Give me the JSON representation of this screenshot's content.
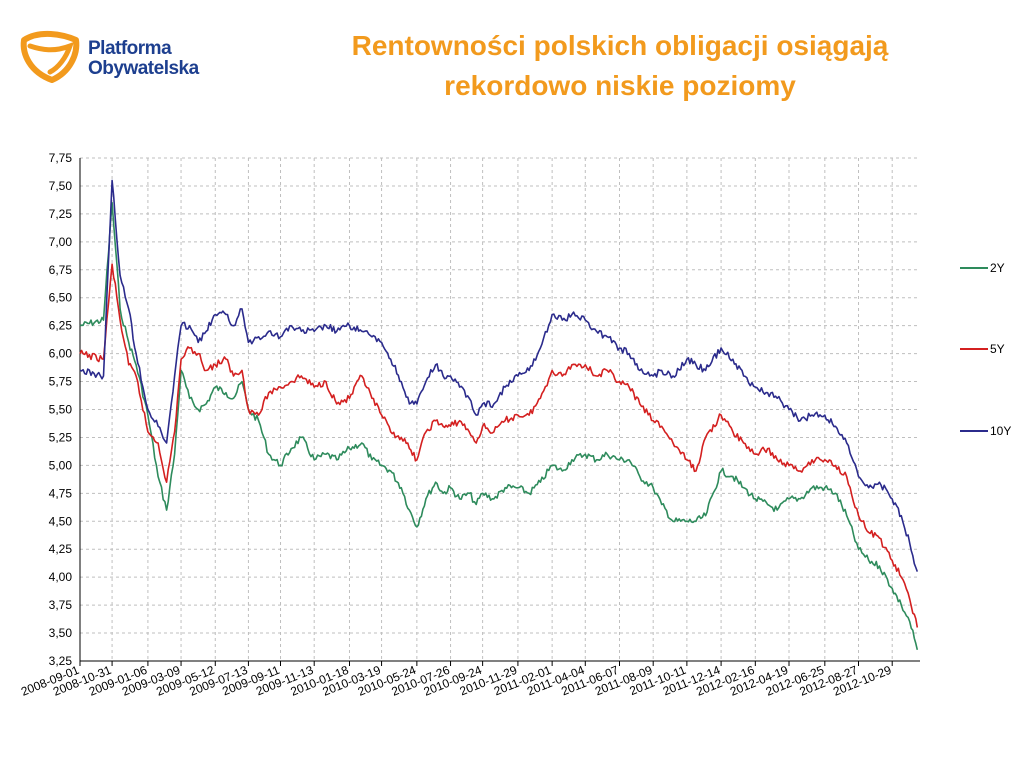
{
  "header": {
    "logo_line1": "Platforma",
    "logo_line2": "Obywatelska",
    "title_line1": "Rentowności polskich obligacji osiągają",
    "title_line2": "rekordowo niskie poziomy"
  },
  "colors": {
    "title": "#f29a1d",
    "logo_text": "#1d3f8f",
    "logo_mark": "#f29a1d",
    "grid": "#bfbfbf",
    "series_2Y": "#2e8b5c",
    "series_5Y": "#d42020",
    "series_10Y": "#2b2b8c"
  },
  "chart_data": {
    "type": "line",
    "title": "",
    "xlabel": "",
    "ylabel": "",
    "ylim": [
      3.25,
      7.75
    ],
    "yticks": [
      "7,75",
      "7,50",
      "7,25",
      "7,00",
      "6,75",
      "6,50",
      "6,25",
      "6,00",
      "5,75",
      "5,50",
      "5,25",
      "5,00",
      "4,75",
      "4,50",
      "4,25",
      "4,00",
      "3,75",
      "3,50",
      "3,25"
    ],
    "xticks": [
      "2008-09-01",
      "2008-10-31",
      "2009-01-06",
      "2009-03-09",
      "2009-05-12",
      "2009-07-13",
      "2009-09-11",
      "2009-11-13",
      "2010-01-18",
      "2010-03-19",
      "2010-05-24",
      "2010-07-26",
      "2010-09-24",
      "2010-11-29",
      "2011-02-01",
      "2011-04-04",
      "2011-06-07",
      "2011-08-09",
      "2011-10-11",
      "2011-12-14",
      "2012-02-16",
      "2012-04-19",
      "2012-06-25",
      "2012-08-27",
      "2012-10-29"
    ],
    "grid": true,
    "legend_position": "right",
    "series": [
      {
        "name": "2Y",
        "x": [
          "2008-09-01",
          "2008-10-15",
          "2008-10-31",
          "2008-11-15",
          "2008-12-01",
          "2008-12-15",
          "2009-01-06",
          "2009-01-25",
          "2009-02-10",
          "2009-02-25",
          "2009-03-09",
          "2009-03-25",
          "2009-04-10",
          "2009-04-25",
          "2009-05-12",
          "2009-06-01",
          "2009-06-15",
          "2009-07-01",
          "2009-07-13",
          "2009-08-01",
          "2009-08-20",
          "2009-09-11",
          "2009-10-01",
          "2009-10-20",
          "2009-11-13",
          "2009-12-05",
          "2009-12-25",
          "2010-01-18",
          "2010-02-10",
          "2010-03-01",
          "2010-03-19",
          "2010-04-05",
          "2010-04-25",
          "2010-05-10",
          "2010-05-24",
          "2010-06-10",
          "2010-06-28",
          "2010-07-12",
          "2010-07-26",
          "2010-08-12",
          "2010-08-30",
          "2010-09-12",
          "2010-09-24",
          "2010-10-15",
          "2010-11-05",
          "2010-11-29",
          "2010-12-20",
          "2011-01-10",
          "2011-02-01",
          "2011-02-20",
          "2011-03-10",
          "2011-04-04",
          "2011-04-25",
          "2011-05-15",
          "2011-06-07",
          "2011-06-25",
          "2011-07-15",
          "2011-08-09",
          "2011-08-25",
          "2011-09-15",
          "2011-10-11",
          "2011-10-28",
          "2011-11-15",
          "2011-12-14",
          "2012-01-05",
          "2012-01-25",
          "2012-02-16",
          "2012-03-10",
          "2012-03-28",
          "2012-04-19",
          "2012-05-10",
          "2012-06-01",
          "2012-06-25",
          "2012-07-15",
          "2012-08-05",
          "2012-08-27",
          "2012-09-15",
          "2012-10-05",
          "2012-10-29",
          "2012-11-15",
          "2012-12-01",
          "2012-12-15"
        ],
        "values": [
          6.25,
          6.3,
          7.35,
          6.4,
          6.1,
          5.9,
          5.45,
          4.9,
          4.6,
          5.1,
          5.85,
          5.6,
          5.5,
          5.55,
          5.7,
          5.65,
          5.6,
          5.75,
          5.5,
          5.4,
          5.1,
          5.0,
          5.15,
          5.25,
          5.05,
          5.1,
          5.05,
          5.15,
          5.2,
          5.05,
          5.0,
          4.95,
          4.8,
          4.6,
          4.45,
          4.7,
          4.85,
          4.75,
          4.8,
          4.7,
          4.75,
          4.65,
          4.75,
          4.7,
          4.8,
          4.8,
          4.75,
          4.85,
          5.0,
          4.95,
          5.05,
          5.1,
          5.05,
          5.1,
          5.05,
          5.05,
          4.9,
          4.8,
          4.65,
          4.5,
          4.5,
          4.5,
          4.55,
          4.95,
          4.9,
          4.8,
          4.7,
          4.65,
          4.6,
          4.7,
          4.7,
          4.8,
          4.8,
          4.75,
          4.55,
          4.25,
          4.15,
          4.1,
          3.9,
          3.75,
          3.6,
          3.35
        ]
      },
      {
        "name": "5Y",
        "x": [
          "2008-09-01",
          "2008-10-15",
          "2008-10-31",
          "2008-11-15",
          "2008-12-01",
          "2008-12-15",
          "2009-01-06",
          "2009-01-25",
          "2009-02-10",
          "2009-02-25",
          "2009-03-09",
          "2009-03-25",
          "2009-04-10",
          "2009-04-25",
          "2009-05-12",
          "2009-06-01",
          "2009-06-15",
          "2009-07-01",
          "2009-07-13",
          "2009-08-01",
          "2009-08-20",
          "2009-09-11",
          "2009-10-01",
          "2009-10-20",
          "2009-11-13",
          "2009-12-05",
          "2009-12-25",
          "2010-01-18",
          "2010-02-10",
          "2010-03-01",
          "2010-03-19",
          "2010-04-05",
          "2010-04-25",
          "2010-05-10",
          "2010-05-24",
          "2010-06-10",
          "2010-06-28",
          "2010-07-12",
          "2010-07-26",
          "2010-08-12",
          "2010-08-30",
          "2010-09-12",
          "2010-09-24",
          "2010-10-15",
          "2010-11-05",
          "2010-11-29",
          "2010-12-20",
          "2011-01-10",
          "2011-02-01",
          "2011-02-20",
          "2011-03-10",
          "2011-04-04",
          "2011-04-25",
          "2011-05-15",
          "2011-06-07",
          "2011-06-25",
          "2011-07-15",
          "2011-08-09",
          "2011-08-25",
          "2011-09-15",
          "2011-10-11",
          "2011-10-28",
          "2011-11-15",
          "2011-12-14",
          "2012-01-05",
          "2012-01-25",
          "2012-02-16",
          "2012-03-10",
          "2012-03-28",
          "2012-04-19",
          "2012-05-10",
          "2012-06-01",
          "2012-06-25",
          "2012-07-15",
          "2012-08-05",
          "2012-08-27",
          "2012-09-15",
          "2012-10-05",
          "2012-10-29",
          "2012-11-15",
          "2012-12-01",
          "2012-12-15"
        ],
        "values": [
          6.0,
          5.95,
          6.8,
          6.3,
          5.9,
          5.8,
          5.3,
          5.2,
          4.85,
          5.3,
          5.95,
          6.05,
          6.0,
          5.85,
          5.9,
          5.95,
          5.8,
          5.85,
          5.5,
          5.45,
          5.65,
          5.7,
          5.75,
          5.8,
          5.7,
          5.75,
          5.55,
          5.6,
          5.8,
          5.6,
          5.45,
          5.3,
          5.25,
          5.15,
          5.05,
          5.3,
          5.4,
          5.35,
          5.35,
          5.4,
          5.3,
          5.2,
          5.35,
          5.3,
          5.4,
          5.45,
          5.45,
          5.6,
          5.85,
          5.8,
          5.9,
          5.9,
          5.8,
          5.85,
          5.75,
          5.7,
          5.55,
          5.4,
          5.35,
          5.2,
          5.05,
          4.95,
          5.25,
          5.45,
          5.3,
          5.2,
          5.1,
          5.15,
          5.05,
          5.0,
          4.95,
          5.05,
          5.05,
          5.0,
          4.9,
          4.55,
          4.4,
          4.35,
          4.15,
          4.0,
          3.8,
          3.55
        ]
      },
      {
        "name": "10Y",
        "x": [
          "2008-09-01",
          "2008-10-15",
          "2008-10-31",
          "2008-11-15",
          "2008-12-01",
          "2008-12-15",
          "2009-01-06",
          "2009-01-25",
          "2009-02-10",
          "2009-02-25",
          "2009-03-09",
          "2009-03-25",
          "2009-04-10",
          "2009-04-25",
          "2009-05-12",
          "2009-06-01",
          "2009-06-15",
          "2009-07-01",
          "2009-07-13",
          "2009-08-01",
          "2009-08-20",
          "2009-09-11",
          "2009-10-01",
          "2009-10-20",
          "2009-11-13",
          "2009-12-05",
          "2009-12-25",
          "2010-01-18",
          "2010-02-10",
          "2010-03-01",
          "2010-03-19",
          "2010-04-05",
          "2010-04-25",
          "2010-05-10",
          "2010-05-24",
          "2010-06-10",
          "2010-06-28",
          "2010-07-12",
          "2010-07-26",
          "2010-08-12",
          "2010-08-30",
          "2010-09-12",
          "2010-09-24",
          "2010-10-15",
          "2010-11-05",
          "2010-11-29",
          "2010-12-20",
          "2011-01-10",
          "2011-02-01",
          "2011-02-20",
          "2011-03-10",
          "2011-04-04",
          "2011-04-25",
          "2011-05-15",
          "2011-06-07",
          "2011-06-25",
          "2011-07-15",
          "2011-08-09",
          "2011-08-25",
          "2011-09-15",
          "2011-10-11",
          "2011-10-28",
          "2011-11-15",
          "2011-12-14",
          "2012-01-05",
          "2012-01-25",
          "2012-02-16",
          "2012-03-10",
          "2012-03-28",
          "2012-04-19",
          "2012-05-10",
          "2012-06-01",
          "2012-06-25",
          "2012-07-15",
          "2012-08-05",
          "2012-08-27",
          "2012-09-15",
          "2012-10-05",
          "2012-10-29",
          "2012-11-15",
          "2012-12-01",
          "2012-12-15"
        ],
        "values": [
          5.85,
          5.8,
          7.55,
          6.7,
          6.4,
          6.0,
          5.5,
          5.35,
          5.2,
          5.8,
          6.25,
          6.25,
          6.1,
          6.2,
          6.35,
          6.35,
          6.25,
          6.4,
          6.1,
          6.15,
          6.2,
          6.15,
          6.25,
          6.2,
          6.2,
          6.25,
          6.2,
          6.25,
          6.2,
          6.15,
          6.1,
          5.95,
          5.75,
          5.55,
          5.55,
          5.75,
          5.9,
          5.8,
          5.8,
          5.7,
          5.6,
          5.45,
          5.55,
          5.55,
          5.7,
          5.8,
          5.85,
          6.05,
          6.35,
          6.3,
          6.35,
          6.3,
          6.2,
          6.15,
          6.05,
          6.0,
          5.85,
          5.8,
          5.85,
          5.8,
          5.95,
          5.9,
          5.85,
          6.05,
          5.95,
          5.8,
          5.7,
          5.65,
          5.6,
          5.5,
          5.4,
          5.45,
          5.45,
          5.35,
          5.2,
          4.9,
          4.8,
          4.85,
          4.7,
          4.55,
          4.3,
          4.05
        ]
      }
    ]
  }
}
